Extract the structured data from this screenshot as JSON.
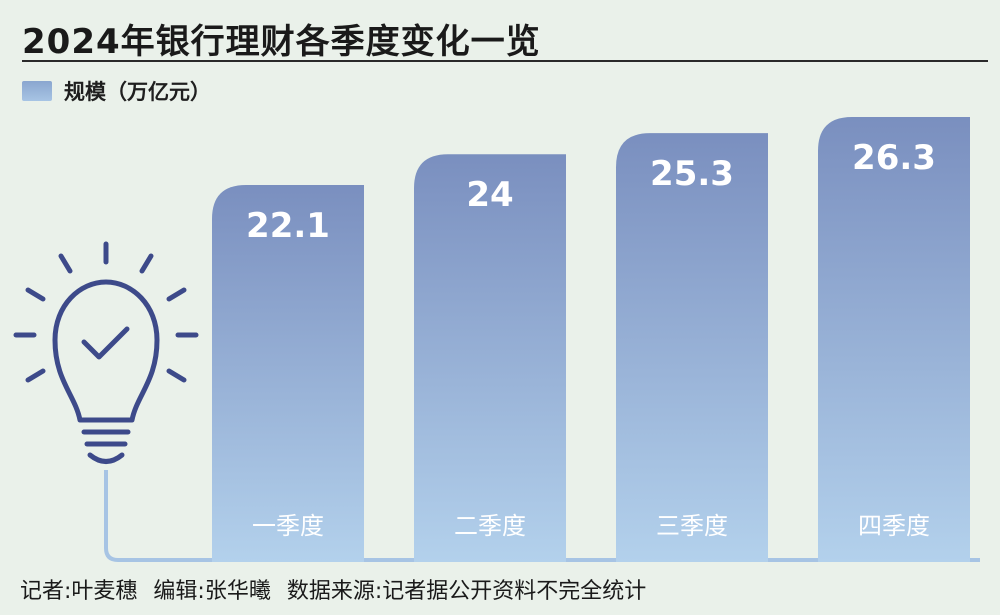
{
  "title": "2024年银行理财各季度变化一览",
  "legend": {
    "label": "规模（万亿元）",
    "color": "#a7c4e4"
  },
  "colors": {
    "bar_top": "#7a8fbf",
    "bar_bottom": "#b3d1ec",
    "icon": "#3d4a8a",
    "background": "#eaf1ea"
  },
  "icon": "lightbulb-check-icon",
  "footer": {
    "reporter": "记者:叶麦穗",
    "editor": "编辑:张华曦",
    "source": "数据来源:记者据公开资料不完全统计"
  },
  "chart_data": {
    "type": "bar",
    "title": "2024年银行理财各季度变化一览",
    "categories": [
      "一季度",
      "二季度",
      "三季度",
      "四季度"
    ],
    "series": [
      {
        "name": "规模（万亿元）",
        "values": [
          22.1,
          24,
          25.3,
          26.3
        ]
      }
    ],
    "data_labels": [
      "22.1",
      "24",
      "25.3",
      "26.3"
    ],
    "grid": false,
    "legend_position": "top-left"
  }
}
